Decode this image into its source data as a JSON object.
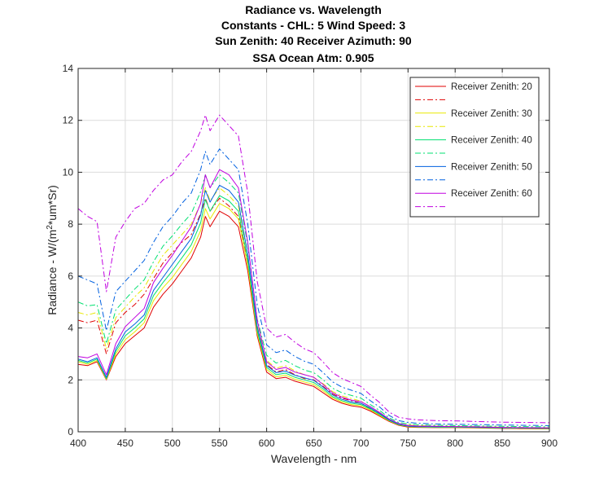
{
  "chart_data": {
    "type": "line",
    "title_lines": [
      "Radiance vs. Wavelength",
      "Constants - CHL: 5 Wind Speed: 3",
      "Sun Zenith: 40 Receiver Azimuth: 90",
      "SSA Ocean Atm: 0.905"
    ],
    "xlabel": "Wavelength - nm",
    "ylabel_prefix": "Radiance - W/(m",
    "ylabel_sup": "2",
    "ylabel_suffix": "*um*Sr)",
    "xlim": [
      400,
      900
    ],
    "ylim": [
      0,
      14
    ],
    "xticks": [
      400,
      450,
      500,
      550,
      600,
      650,
      700,
      750,
      800,
      850,
      900
    ],
    "yticks": [
      0,
      2,
      4,
      6,
      8,
      10,
      12,
      14
    ],
    "grid": true,
    "legend_position": "top-right",
    "x": [
      400,
      410,
      420,
      430,
      440,
      450,
      460,
      470,
      480,
      490,
      500,
      510,
      520,
      530,
      535,
      540,
      550,
      560,
      570,
      580,
      590,
      600,
      610,
      620,
      630,
      640,
      650,
      660,
      670,
      680,
      690,
      700,
      710,
      720,
      730,
      740,
      750,
      760,
      780,
      800,
      820,
      850,
      870,
      900
    ],
    "series": [
      {
        "name": "Receiver Zenith: 20",
        "style": "solid",
        "color": "#e00000",
        "values": [
          2.6,
          2.55,
          2.7,
          2.0,
          2.9,
          3.4,
          3.7,
          4.0,
          4.8,
          5.3,
          5.7,
          6.2,
          6.7,
          7.5,
          8.3,
          7.9,
          8.5,
          8.3,
          7.9,
          6.2,
          3.7,
          2.3,
          2.05,
          2.1,
          1.95,
          1.85,
          1.75,
          1.5,
          1.25,
          1.1,
          1.0,
          0.95,
          0.8,
          0.6,
          0.4,
          0.25,
          0.18,
          0.17,
          0.16,
          0.16,
          0.15,
          0.13,
          0.12,
          0.11
        ]
      },
      {
        "name": "",
        "style": "dashdot",
        "color": "#e00000",
        "values": [
          4.3,
          4.2,
          4.3,
          3.0,
          4.2,
          4.6,
          4.9,
          5.3,
          5.9,
          6.5,
          6.9,
          7.3,
          7.6,
          8.4,
          9.0,
          8.5,
          9.0,
          8.7,
          8.3,
          6.5,
          3.9,
          2.6,
          2.3,
          2.4,
          2.2,
          2.05,
          2.0,
          1.75,
          1.45,
          1.3,
          1.2,
          1.1,
          0.9,
          0.7,
          0.45,
          0.3,
          0.24,
          0.22,
          0.2,
          0.19,
          0.18,
          0.16,
          0.15,
          0.14
        ]
      },
      {
        "name": "Receiver Zenith: 30",
        "style": "solid",
        "color": "#e8e800",
        "values": [
          2.7,
          2.6,
          2.75,
          2.02,
          3.0,
          3.55,
          3.85,
          4.2,
          5.05,
          5.55,
          5.95,
          6.45,
          6.95,
          7.75,
          8.6,
          8.2,
          8.8,
          8.6,
          8.2,
          6.4,
          3.8,
          2.4,
          2.12,
          2.18,
          2.02,
          1.92,
          1.82,
          1.58,
          1.3,
          1.15,
          1.05,
          1.0,
          0.84,
          0.63,
          0.42,
          0.27,
          0.2,
          0.18,
          0.17,
          0.17,
          0.16,
          0.14,
          0.13,
          0.12
        ]
      },
      {
        "name": "",
        "style": "dashdot",
        "color": "#e8e800",
        "values": [
          4.6,
          4.5,
          4.6,
          3.2,
          4.4,
          4.8,
          5.2,
          5.55,
          6.2,
          6.8,
          7.2,
          7.6,
          8.0,
          8.8,
          9.4,
          8.9,
          9.4,
          9.1,
          8.7,
          6.8,
          4.1,
          2.75,
          2.45,
          2.55,
          2.35,
          2.2,
          2.1,
          1.85,
          1.55,
          1.38,
          1.28,
          1.18,
          0.96,
          0.74,
          0.48,
          0.32,
          0.26,
          0.24,
          0.22,
          0.21,
          0.2,
          0.18,
          0.17,
          0.16
        ]
      },
      {
        "name": "Receiver Zenith: 40",
        "style": "solid",
        "color": "#00e070",
        "values": [
          2.75,
          2.65,
          2.8,
          2.05,
          3.1,
          3.7,
          4.0,
          4.35,
          5.25,
          5.75,
          6.2,
          6.7,
          7.2,
          8.05,
          8.95,
          8.5,
          9.1,
          8.9,
          8.5,
          6.6,
          3.9,
          2.48,
          2.2,
          2.26,
          2.1,
          2.0,
          1.9,
          1.65,
          1.35,
          1.2,
          1.1,
          1.05,
          0.88,
          0.66,
          0.44,
          0.28,
          0.21,
          0.19,
          0.18,
          0.18,
          0.17,
          0.15,
          0.14,
          0.13
        ]
      },
      {
        "name": "",
        "style": "dashdot",
        "color": "#00e070",
        "values": [
          5.0,
          4.85,
          4.9,
          3.4,
          4.7,
          5.1,
          5.5,
          5.85,
          6.55,
          7.15,
          7.55,
          8.0,
          8.4,
          9.25,
          9.9,
          9.4,
          9.9,
          9.6,
          9.2,
          7.2,
          4.35,
          2.95,
          2.65,
          2.75,
          2.55,
          2.38,
          2.28,
          2.0,
          1.68,
          1.5,
          1.4,
          1.3,
          1.05,
          0.82,
          0.54,
          0.36,
          0.3,
          0.27,
          0.25,
          0.24,
          0.23,
          0.21,
          0.2,
          0.19
        ]
      },
      {
        "name": "Receiver Zenith: 50",
        "style": "solid",
        "color": "#0060e0",
        "values": [
          2.8,
          2.7,
          2.85,
          2.1,
          3.2,
          3.85,
          4.15,
          4.5,
          5.45,
          5.95,
          6.45,
          6.95,
          7.45,
          8.35,
          9.3,
          8.85,
          9.5,
          9.3,
          8.85,
          6.85,
          4.05,
          2.55,
          2.28,
          2.34,
          2.18,
          2.08,
          1.98,
          1.72,
          1.42,
          1.25,
          1.15,
          1.1,
          0.92,
          0.7,
          0.46,
          0.3,
          0.22,
          0.2,
          0.19,
          0.19,
          0.18,
          0.16,
          0.15,
          0.14
        ]
      },
      {
        "name": "",
        "style": "dashdot",
        "color": "#0060e0",
        "values": [
          6.0,
          5.85,
          5.7,
          3.9,
          5.4,
          5.8,
          6.2,
          6.6,
          7.3,
          7.9,
          8.3,
          8.8,
          9.2,
          10.1,
          10.8,
          10.3,
          10.9,
          10.5,
          10.1,
          8.0,
          4.9,
          3.35,
          3.05,
          3.15,
          2.9,
          2.72,
          2.6,
          2.28,
          1.92,
          1.72,
          1.6,
          1.48,
          1.2,
          0.95,
          0.63,
          0.43,
          0.36,
          0.33,
          0.3,
          0.29,
          0.28,
          0.26,
          0.25,
          0.24
        ]
      },
      {
        "name": "Receiver Zenith: 60",
        "style": "solid",
        "color": "#c000e0",
        "values": [
          2.9,
          2.85,
          3.0,
          2.2,
          3.4,
          4.05,
          4.4,
          4.75,
          5.75,
          6.3,
          6.8,
          7.35,
          7.9,
          8.8,
          9.9,
          9.4,
          10.1,
          9.9,
          9.4,
          7.3,
          4.3,
          2.7,
          2.4,
          2.48,
          2.3,
          2.2,
          2.1,
          1.82,
          1.5,
          1.33,
          1.22,
          1.16,
          0.97,
          0.74,
          0.49,
          0.32,
          0.24,
          0.22,
          0.21,
          0.2,
          0.19,
          0.17,
          0.16,
          0.15
        ]
      },
      {
        "name": "",
        "style": "dashdot",
        "color": "#c000e0",
        "values": [
          8.6,
          8.3,
          8.1,
          5.4,
          7.5,
          8.1,
          8.6,
          8.8,
          9.3,
          9.7,
          9.9,
          10.4,
          10.8,
          11.6,
          12.2,
          11.6,
          12.2,
          11.8,
          11.4,
          9.2,
          5.8,
          4.0,
          3.65,
          3.75,
          3.45,
          3.2,
          3.05,
          2.68,
          2.28,
          2.05,
          1.9,
          1.75,
          1.42,
          1.12,
          0.76,
          0.56,
          0.5,
          0.46,
          0.43,
          0.42,
          0.4,
          0.37,
          0.36,
          0.35
        ]
      }
    ]
  }
}
